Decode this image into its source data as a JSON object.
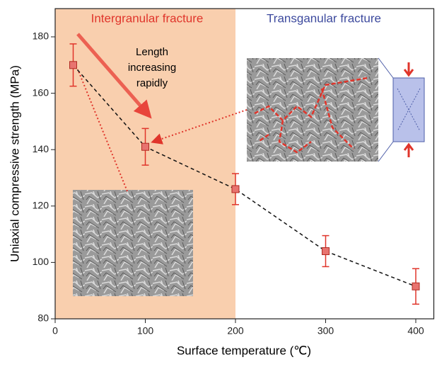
{
  "chart_data": {
    "type": "line",
    "x_label": "Surface temperature (℃)",
    "y_label": "Uniaxial compressive strength (MPa)",
    "xlim": [
      0,
      420
    ],
    "ylim": [
      80,
      190
    ],
    "xticks": [
      0,
      100,
      200,
      300,
      400
    ],
    "yticks": [
      80,
      100,
      120,
      140,
      160,
      180
    ],
    "shade_xlim": [
      0,
      200
    ],
    "shade_color": "#f9cfae",
    "x": [
      20,
      100,
      200,
      300,
      400
    ],
    "series": [
      {
        "color": "#e8736f",
        "values": [
          170,
          141,
          126,
          104,
          91.5
        ],
        "errors": [
          7.5,
          6.5,
          5.5,
          5.5,
          6.3
        ]
      }
    ],
    "annotations": {
      "left_region": "Intergranular fracture",
      "right_region": "Transganular fracture",
      "arrow_text": [
        "Length",
        "increasing",
        "rapidly"
      ]
    }
  }
}
